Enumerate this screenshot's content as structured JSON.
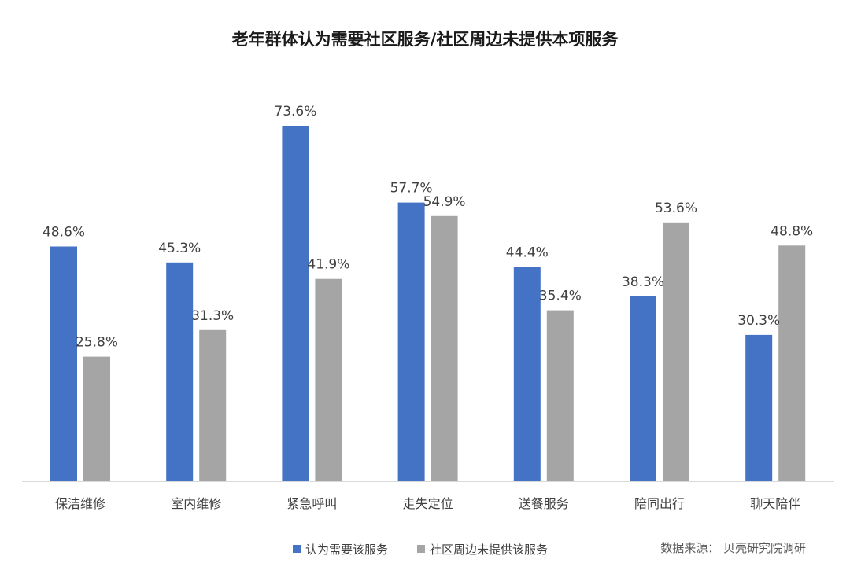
{
  "chart_data": {
    "type": "bar",
    "title": "老年群体认为需要社区服务/社区周边未提供本项服务",
    "categories": [
      "保洁维修",
      "室内维修",
      "紧急呼叫",
      "走失定位",
      "送餐服务",
      "陪同出行",
      "聊天陪伴"
    ],
    "series": [
      {
        "name": "认为需要该服务",
        "color": "#4472C4",
        "values": [
          48.6,
          45.3,
          73.6,
          57.7,
          44.4,
          38.3,
          30.3
        ],
        "labels": [
          "48.6%",
          "45.3%",
          "73.6%",
          "57.7%",
          "44.4%",
          "38.3%",
          "30.3%"
        ]
      },
      {
        "name": "社区周边未提供该服务",
        "color": "#A5A5A5",
        "values": [
          25.8,
          31.3,
          41.9,
          54.9,
          35.4,
          53.6,
          48.8
        ],
        "labels": [
          "25.8%",
          "31.3%",
          "41.9%",
          "54.9%",
          "35.4%",
          "53.6%",
          "48.8%"
        ]
      }
    ],
    "ylim": [
      0,
      80
    ],
    "grid": false,
    "legend_position": "bottom",
    "source": "数据来源： 贝壳研究院调研"
  }
}
